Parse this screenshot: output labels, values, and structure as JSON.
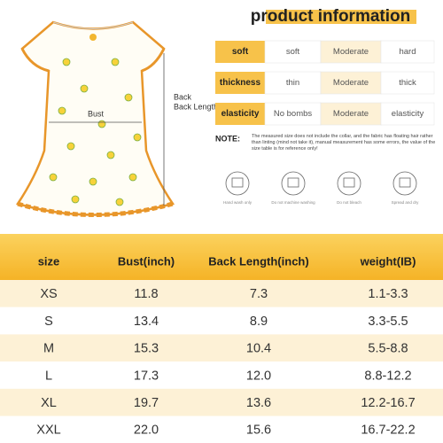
{
  "header": {
    "title": "product information"
  },
  "dress": {
    "back_length_label": "Back Length",
    "bust_label": "Bust"
  },
  "attributes": [
    {
      "label": "soft",
      "options": [
        "soft",
        "Moderate",
        "hard"
      ]
    },
    {
      "label": "thickness",
      "options": [
        "thin",
        "Moderate",
        "thick"
      ]
    },
    {
      "label": "elasticity",
      "options": [
        "No bombs",
        "Moderate",
        "elasticity"
      ]
    }
  ],
  "note": {
    "label": "NOTE:",
    "text": "The measured size does not include the collar, and the fabric has floating hair rather than linting (mind not take it), manual measurement has some errors, the value of the size table is for reference only!"
  },
  "care": [
    "Hand wash only",
    "Do not machine washing",
    "Do not bleach",
    "Spread and dry"
  ],
  "table": {
    "columns": [
      "size",
      "Bust(inch)",
      "Back Length(inch)",
      "weight(IB)"
    ],
    "rows": [
      [
        "XS",
        "11.8",
        "7.3",
        "1.1-3.3"
      ],
      [
        "S",
        "13.4",
        "8.9",
        "3.3-5.5"
      ],
      [
        "M",
        "15.3",
        "10.4",
        "5.5-8.8"
      ],
      [
        "L",
        "17.3",
        "12.0",
        "8.8-12.2"
      ],
      [
        "XL",
        "19.7",
        "13.6",
        "12.2-16.7"
      ],
      [
        "XXL",
        "22.0",
        "15.6",
        "16.7-22.2"
      ]
    ]
  }
}
